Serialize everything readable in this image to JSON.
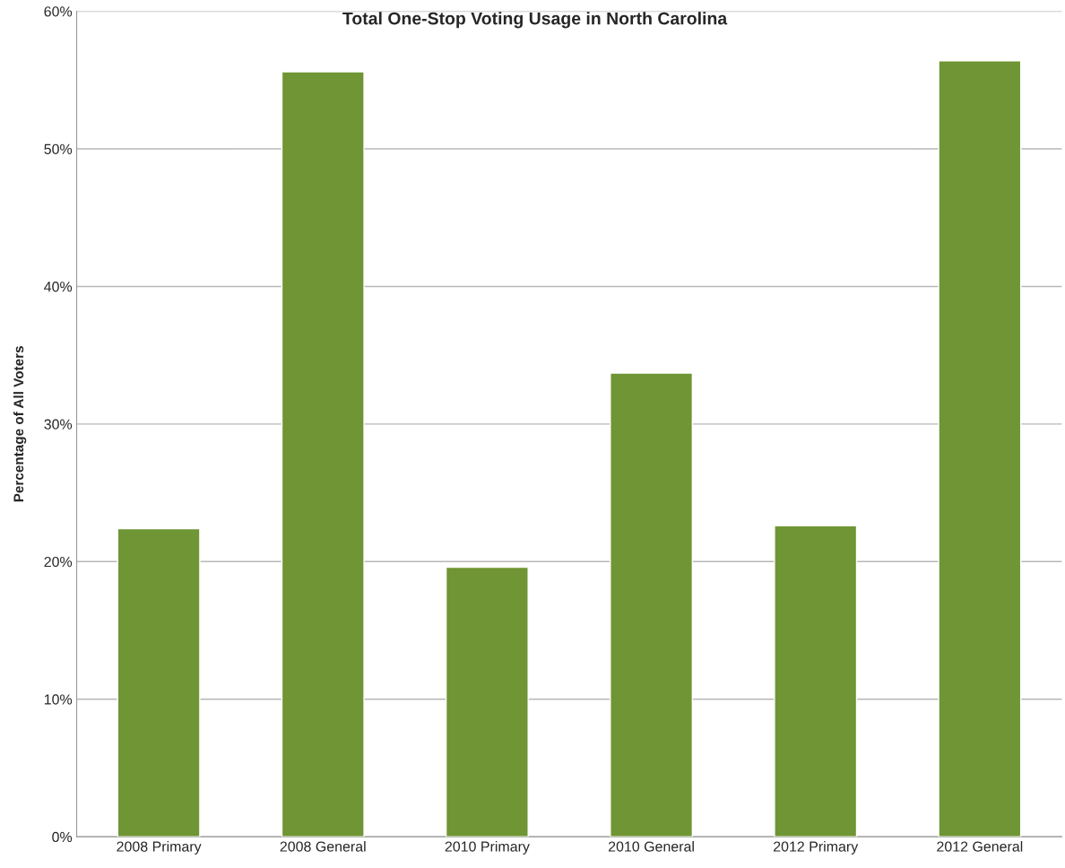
{
  "chart_data": {
    "type": "bar",
    "title": "Total One-Stop Voting Usage in North Carolina",
    "ylabel": "Percentage of All Voters",
    "categories": [
      "2008 Primary",
      "2008 General",
      "2010 Primary",
      "2010 General",
      "2012 Primary",
      "2012 General"
    ],
    "values": [
      22.4,
      55.6,
      19.6,
      33.7,
      22.6,
      56.4
    ],
    "color": "#6f9534",
    "ylim": [
      0,
      60
    ],
    "yticks": [
      {
        "value": 0,
        "label": "0%"
      },
      {
        "value": 10,
        "label": "10%"
      },
      {
        "value": 20,
        "label": "20%"
      },
      {
        "value": 30,
        "label": "30%"
      },
      {
        "value": 40,
        "label": "40%"
      },
      {
        "value": 50,
        "label": "50%"
      },
      {
        "value": 60,
        "label": "60%"
      }
    ],
    "grid": "y",
    "legend": false
  }
}
